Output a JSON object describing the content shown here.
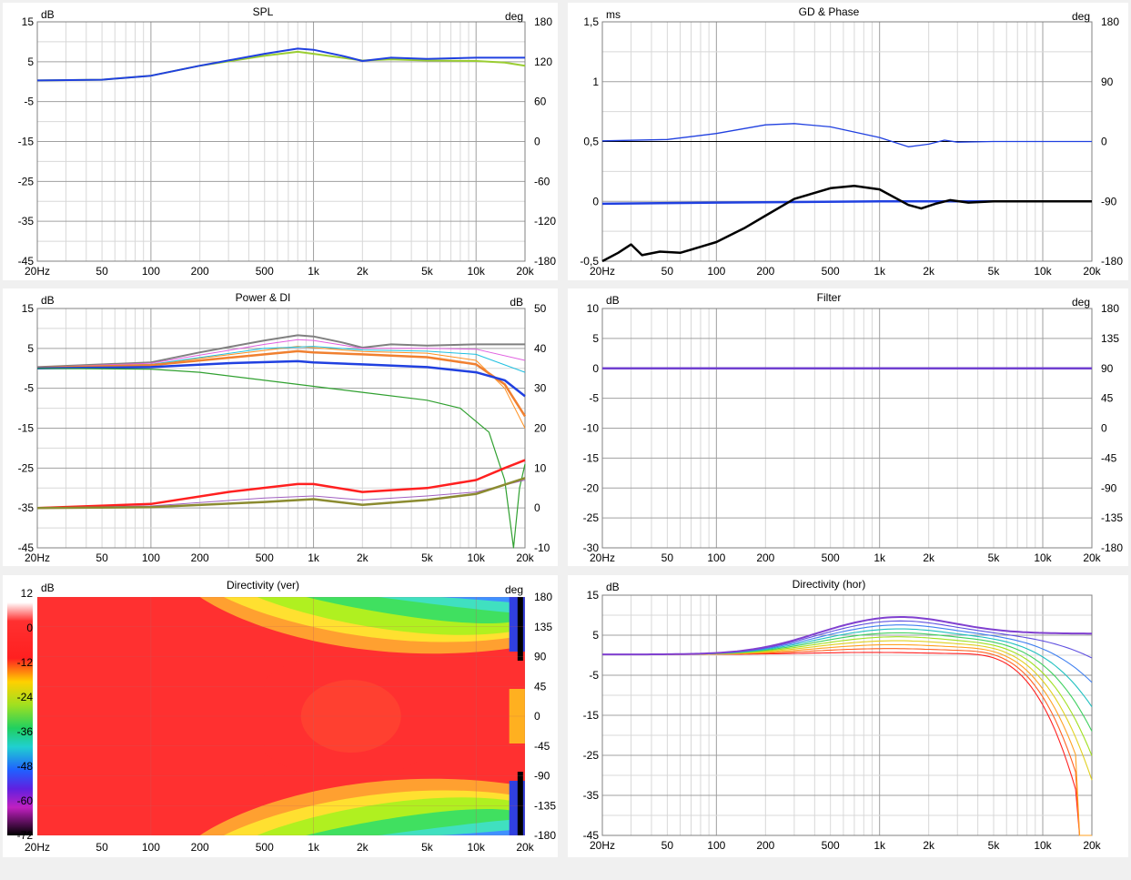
{
  "colors": {
    "background": "#f0f0f0",
    "panel": "#ffffff",
    "grid_major": "#a0a0a0",
    "grid_minor": "#d8d8d8",
    "blue": "#2040e0",
    "black": "#000000",
    "yellow_green": "#9acd32",
    "red": "#ff2020",
    "purple": "#8040c0",
    "olive": "#8b8b30"
  },
  "freq_ticks": [
    "20Hz",
    "50",
    "100",
    "200",
    "500",
    "1k",
    "2k",
    "5k",
    "10k",
    "20k"
  ],
  "chart_data": [
    {
      "id": "spl",
      "type": "line",
      "title": "SPL",
      "left_unit": "dB",
      "right_unit": "deg",
      "y_left": {
        "min": -45,
        "max": 15,
        "ticks": [
          "15",
          "5",
          "-5",
          "-15",
          "-25",
          "-35",
          "-45"
        ]
      },
      "y_right": {
        "min": -180,
        "max": 180,
        "ticks": [
          "180",
          "120",
          "60",
          "0",
          "-60",
          "-120",
          "-180"
        ]
      },
      "series": [
        {
          "color": "#9acd32",
          "width": 2,
          "points": [
            [
              20,
              0.3
            ],
            [
              50,
              0.5
            ],
            [
              100,
              1.5
            ],
            [
              200,
              4
            ],
            [
              500,
              6.5
            ],
            [
              800,
              7.5
            ],
            [
              1000,
              7
            ],
            [
              2000,
              5.3
            ],
            [
              3000,
              5.6
            ],
            [
              5000,
              5.3
            ],
            [
              10000,
              5.2
            ],
            [
              15000,
              4.8
            ],
            [
              20000,
              4
            ]
          ]
        },
        {
          "color": "#2040e0",
          "width": 2,
          "points": [
            [
              20,
              0.3
            ],
            [
              50,
              0.5
            ],
            [
              100,
              1.5
            ],
            [
              200,
              4
            ],
            [
              500,
              7
            ],
            [
              800,
              8.3
            ],
            [
              1000,
              8
            ],
            [
              1500,
              6.5
            ],
            [
              2000,
              5.2
            ],
            [
              3000,
              6
            ],
            [
              5000,
              5.7
            ],
            [
              10000,
              6
            ],
            [
              20000,
              6
            ]
          ]
        }
      ]
    },
    {
      "id": "gd_phase",
      "type": "line",
      "title": "GD & Phase",
      "left_unit": "ms",
      "right_unit": "deg",
      "y_left": {
        "min": -0.5,
        "max": 1.5,
        "ticks": [
          "1,5",
          "1",
          "0,5",
          "0",
          "-0,5"
        ]
      },
      "y_right": {
        "min": -180,
        "max": 180,
        "ticks": [
          "180",
          "90",
          "0",
          "-90",
          "-180"
        ]
      },
      "series": [
        {
          "color": "#2040e0",
          "width": 1.3,
          "axis": "right",
          "points": [
            [
              20,
              1
            ],
            [
              50,
              3
            ],
            [
              100,
              12
            ],
            [
              200,
              25
            ],
            [
              300,
              27
            ],
            [
              500,
              22
            ],
            [
              1000,
              6
            ],
            [
              1500,
              -8
            ],
            [
              2000,
              -4
            ],
            [
              2500,
              2
            ],
            [
              3000,
              -1
            ],
            [
              5000,
              0
            ],
            [
              20000,
              0
            ]
          ]
        },
        {
          "color": "#2040e0",
          "width": 2.5,
          "points": [
            [
              20,
              -0.02
            ],
            [
              100,
              -0.01
            ],
            [
              1000,
              0
            ],
            [
              20000,
              0
            ]
          ]
        },
        {
          "color": "#000000",
          "width": 2.5,
          "points": [
            [
              20,
              -0.5
            ],
            [
              25,
              -0.43
            ],
            [
              30,
              -0.36
            ],
            [
              35,
              -0.45
            ],
            [
              45,
              -0.42
            ],
            [
              60,
              -0.43
            ],
            [
              80,
              -0.38
            ],
            [
              100,
              -0.34
            ],
            [
              150,
              -0.22
            ],
            [
              200,
              -0.12
            ],
            [
              300,
              0.02
            ],
            [
              500,
              0.11
            ],
            [
              700,
              0.13
            ],
            [
              1000,
              0.1
            ],
            [
              1500,
              -0.03
            ],
            [
              1800,
              -0.06
            ],
            [
              2200,
              -0.02
            ],
            [
              2700,
              0.01
            ],
            [
              3500,
              -0.01
            ],
            [
              5000,
              0
            ],
            [
              20000,
              0
            ]
          ]
        }
      ]
    },
    {
      "id": "power_di",
      "type": "line",
      "title": "Power & DI",
      "left_unit": "dB",
      "right_unit": "dB",
      "y_left": {
        "min": -45,
        "max": 15,
        "ticks": [
          "15",
          "5",
          "-5",
          "-15",
          "-25",
          "-35",
          "-45"
        ]
      },
      "y_right": {
        "min": -10,
        "max": 50,
        "ticks": [
          "50",
          "40",
          "30",
          "20",
          "10",
          "0",
          "-10"
        ]
      },
      "series": [
        {
          "color": "#808080",
          "width": 2,
          "points": [
            [
              20,
              0.3
            ],
            [
              100,
              1.5
            ],
            [
              200,
              4
            ],
            [
              500,
              7
            ],
            [
              800,
              8.3
            ],
            [
              1000,
              8
            ],
            [
              1500,
              6.5
            ],
            [
              2000,
              5.2
            ],
            [
              3000,
              6
            ],
            [
              5000,
              5.7
            ],
            [
              10000,
              6
            ],
            [
              20000,
              6
            ]
          ]
        },
        {
          "color": "#e060e0",
          "width": 1,
          "points": [
            [
              20,
              0.2
            ],
            [
              100,
              1.3
            ],
            [
              500,
              6
            ],
            [
              800,
              7.2
            ],
            [
              1000,
              7
            ],
            [
              2000,
              5
            ],
            [
              5000,
              5
            ],
            [
              10000,
              4.8
            ],
            [
              20000,
              2
            ]
          ]
        },
        {
          "color": "#ff9020",
          "width": 1,
          "points": [
            [
              20,
              0.2
            ],
            [
              100,
              1
            ],
            [
              500,
              4.5
            ],
            [
              800,
              5.5
            ],
            [
              1000,
              5.2
            ],
            [
              2000,
              4.2
            ],
            [
              5000,
              3.8
            ],
            [
              10000,
              2
            ],
            [
              15000,
              -5
            ],
            [
              20000,
              -15
            ]
          ]
        },
        {
          "color": "#20c0e0",
          "width": 1,
          "points": [
            [
              20,
              0.2
            ],
            [
              100,
              1
            ],
            [
              500,
              5
            ],
            [
              1000,
              5.5
            ],
            [
              2000,
              4.6
            ],
            [
              5000,
              4.3
            ],
            [
              10000,
              3.5
            ],
            [
              20000,
              -1
            ]
          ]
        },
        {
          "color": "#f08030",
          "width": 2.5,
          "points": [
            [
              20,
              0.1
            ],
            [
              100,
              0.8
            ],
            [
              500,
              3.5
            ],
            [
              800,
              4.3
            ],
            [
              1000,
              4
            ],
            [
              2000,
              3.5
            ],
            [
              5000,
              2.8
            ],
            [
              10000,
              1
            ],
            [
              15000,
              -4
            ],
            [
              20000,
              -12
            ]
          ]
        },
        {
          "color": "#2040e0",
          "width": 2.5,
          "points": [
            [
              20,
              0
            ],
            [
              100,
              0.3
            ],
            [
              300,
              1.3
            ],
            [
              800,
              1.8
            ],
            [
              1000,
              1.5
            ],
            [
              2000,
              1
            ],
            [
              5000,
              0.3
            ],
            [
              10000,
              -1
            ],
            [
              15000,
              -3
            ],
            [
              20000,
              -7
            ]
          ]
        },
        {
          "color": "#30a030",
          "width": 1.2,
          "points": [
            [
              20,
              0
            ],
            [
              100,
              -0.2
            ],
            [
              200,
              -1
            ],
            [
              500,
              -3
            ],
            [
              1000,
              -4.5
            ],
            [
              2000,
              -6
            ],
            [
              5000,
              -8
            ],
            [
              8000,
              -10
            ],
            [
              12000,
              -16
            ],
            [
              15000,
              -28
            ],
            [
              17000,
              -45
            ],
            [
              18500,
              -30
            ],
            [
              20000,
              -24
            ]
          ]
        },
        {
          "color": "#ff2020",
          "width": 2.5,
          "points": [
            [
              20,
              -35
            ],
            [
              100,
              -34
            ],
            [
              300,
              -31
            ],
            [
              800,
              -29
            ],
            [
              1000,
              -29
            ],
            [
              2000,
              -31
            ],
            [
              5000,
              -30
            ],
            [
              10000,
              -28
            ],
            [
              15000,
              -25
            ],
            [
              20000,
              -23
            ]
          ]
        },
        {
          "color": "#a060c0",
          "width": 1,
          "points": [
            [
              20,
              -35
            ],
            [
              100,
              -34.5
            ],
            [
              500,
              -32.5
            ],
            [
              1000,
              -32
            ],
            [
              2000,
              -33
            ],
            [
              5000,
              -32
            ],
            [
              10000,
              -31
            ],
            [
              20000,
              -28
            ]
          ]
        },
        {
          "color": "#8b8b30",
          "width": 2.5,
          "points": [
            [
              20,
              -35
            ],
            [
              100,
              -34.8
            ],
            [
              500,
              -33.5
            ],
            [
              1000,
              -32.8
            ],
            [
              2000,
              -34.2
            ],
            [
              5000,
              -33
            ],
            [
              10000,
              -31.5
            ],
            [
              20000,
              -27.5
            ]
          ]
        }
      ]
    },
    {
      "id": "filter",
      "type": "line",
      "title": "Filter",
      "left_unit": "dB",
      "right_unit": "deg",
      "y_left": {
        "min": -30,
        "max": 10,
        "ticks": [
          "10",
          "5",
          "0",
          "-5",
          "-10",
          "-15",
          "-20",
          "-25",
          "-30"
        ]
      },
      "y_right": {
        "min": -180,
        "max": 180,
        "ticks": [
          "180",
          "135",
          "90",
          "45",
          "0",
          "-45",
          "-90",
          "-135",
          "-180"
        ]
      },
      "series": [
        {
          "color": "#7040d0",
          "width": 2.5,
          "points": [
            [
              20,
              0
            ],
            [
              20000,
              0
            ]
          ]
        }
      ]
    },
    {
      "id": "dir_ver",
      "type": "heatmap",
      "title": "Directivity (ver)",
      "left_unit": "dB",
      "right_unit": "deg",
      "scale_ticks": [
        "12",
        "0",
        "-12",
        "-24",
        "-36",
        "-48",
        "-60",
        "-72"
      ],
      "y_right": {
        "min": -180,
        "max": 180,
        "ticks": [
          "180",
          "135",
          "90",
          "45",
          "0",
          "-45",
          "-90",
          "-135",
          "-180"
        ]
      }
    },
    {
      "id": "dir_hor",
      "type": "line",
      "title": "Directivity (hor)",
      "left_unit": "dB",
      "y_left": {
        "min": -45,
        "max": 15,
        "ticks": [
          "15",
          "5",
          "-5",
          "-15",
          "-25",
          "-35",
          "-45"
        ]
      }
    }
  ]
}
